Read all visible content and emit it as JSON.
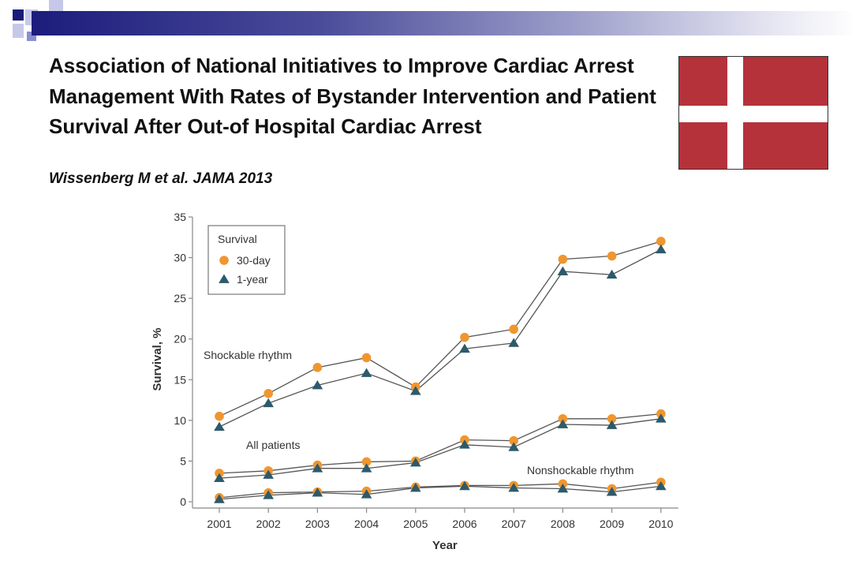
{
  "slide": {
    "title": "Association of National Initiatives to Improve Cardiac Arrest Management With Rates of Bystander Intervention and Patient Survival After Out-of Hospital Cardiac Arrest",
    "citation": "Wissenberg M et al. JAMA 2013",
    "colors": {
      "accent_navy": "#1a1a7a",
      "flag_red": "#b5323a",
      "flag_white": "#ffffff"
    },
    "decor_icon": "blue-squares-bullet-icon"
  },
  "chart_data": {
    "type": "line",
    "xlabel": "Year",
    "ylabel": "Survival, %",
    "ylim": [
      0,
      35
    ],
    "yticks": [
      0,
      5,
      10,
      15,
      20,
      25,
      30,
      35
    ],
    "x": [
      "2001",
      "2002",
      "2003",
      "2004",
      "2005",
      "2006",
      "2007",
      "2008",
      "2009",
      "2010"
    ],
    "grid": false,
    "legend": {
      "title": "Survival",
      "placement": "top-left",
      "entries": [
        {
          "label": "30-day",
          "marker": "circle",
          "color": "#f0962f"
        },
        {
          "label": "1-year",
          "marker": "triangle",
          "color": "#2d5a6b"
        }
      ]
    },
    "groups": [
      {
        "label": "Shockable rhythm",
        "series": [
          {
            "name": "30-day",
            "values": [
              10.5,
              13.3,
              16.5,
              17.7,
              14.1,
              20.2,
              21.2,
              29.8,
              30.2,
              32.0
            ]
          },
          {
            "name": "1-year",
            "values": [
              9.2,
              12.1,
              14.3,
              15.8,
              13.6,
              18.8,
              19.5,
              28.3,
              27.9,
              31.0
            ]
          }
        ]
      },
      {
        "label": "All patients",
        "series": [
          {
            "name": "30-day",
            "values": [
              3.5,
              3.8,
              4.5,
              4.9,
              5.0,
              7.6,
              7.5,
              10.2,
              10.2,
              10.8
            ]
          },
          {
            "name": "1-year",
            "values": [
              2.9,
              3.3,
              4.1,
              4.1,
              4.8,
              7.0,
              6.7,
              9.5,
              9.4,
              10.2
            ]
          }
        ]
      },
      {
        "label": "Nonshockable rhythm",
        "series": [
          {
            "name": "30-day",
            "values": [
              0.5,
              1.1,
              1.2,
              1.3,
              1.8,
              2.0,
              2.0,
              2.2,
              1.6,
              2.4
            ]
          },
          {
            "name": "1-year",
            "values": [
              0.3,
              0.8,
              1.1,
              0.9,
              1.7,
              1.9,
              1.7,
              1.6,
              1.2,
              1.9
            ]
          }
        ]
      }
    ],
    "colors": {
      "series30": "#f0962f",
      "series1yr": "#2d5a6b",
      "line": "#555555",
      "axis": "#888888"
    }
  }
}
